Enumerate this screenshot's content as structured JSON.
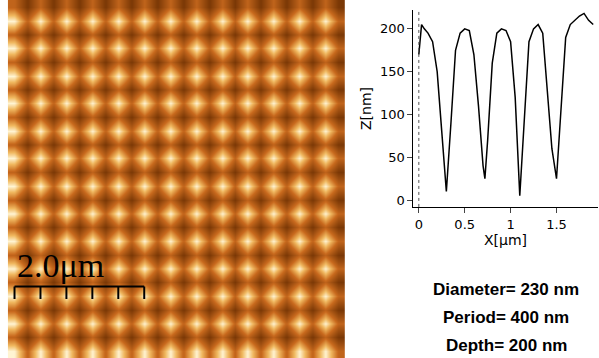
{
  "chart_data": [
    {
      "type": "heatmap",
      "xlim": [
        0,
        5.2
      ],
      "ylim": [
        0,
        5.2
      ],
      "tick_labels": false,
      "scale_bar": {
        "label": "2.0μm",
        "length": 2.0
      },
      "cells": [
        [
          200,
          110,
          200,
          110,
          200,
          110,
          200,
          110,
          200,
          110,
          200,
          110,
          200,
          110,
          200,
          110,
          200,
          110,
          200,
          110,
          200,
          110,
          200,
          110,
          200,
          110
        ],
        [
          110,
          50,
          110,
          50,
          110,
          50,
          110,
          50,
          110,
          50,
          110,
          50,
          110,
          50,
          110,
          50,
          110,
          50,
          110,
          50,
          110,
          50,
          110,
          50,
          110,
          50
        ],
        [
          200,
          110,
          200,
          110,
          200,
          110,
          200,
          110,
          200,
          110,
          200,
          110,
          200,
          110,
          200,
          110,
          200,
          110,
          200,
          110,
          200,
          110,
          200,
          110,
          200,
          110
        ],
        [
          110,
          50,
          110,
          50,
          110,
          50,
          110,
          50,
          110,
          50,
          110,
          50,
          110,
          50,
          110,
          50,
          110,
          50,
          110,
          50,
          110,
          50,
          110,
          50,
          110,
          50
        ],
        [
          200,
          110,
          200,
          110,
          200,
          110,
          200,
          110,
          200,
          110,
          200,
          110,
          200,
          110,
          200,
          110,
          200,
          110,
          200,
          110,
          200,
          110,
          200,
          110,
          200,
          110
        ],
        [
          110,
          50,
          110,
          50,
          110,
          50,
          110,
          50,
          110,
          50,
          110,
          50,
          110,
          50,
          110,
          50,
          110,
          50,
          110,
          50,
          110,
          50,
          110,
          50,
          110,
          50
        ],
        [
          200,
          110,
          200,
          110,
          200,
          110,
          200,
          110,
          200,
          110,
          200,
          110,
          200,
          110,
          200,
          110,
          200,
          110,
          200,
          110,
          200,
          110,
          200,
          110,
          200,
          110
        ],
        [
          110,
          50,
          110,
          50,
          110,
          50,
          110,
          50,
          110,
          50,
          110,
          50,
          110,
          50,
          110,
          50,
          110,
          50,
          110,
          50,
          110,
          50,
          110,
          50,
          110,
          50
        ],
        [
          200,
          110,
          200,
          110,
          200,
          110,
          200,
          110,
          200,
          110,
          200,
          110,
          200,
          110,
          200,
          110,
          200,
          110,
          200,
          110,
          200,
          110,
          200,
          110,
          200,
          110
        ],
        [
          110,
          50,
          110,
          50,
          110,
          50,
          110,
          50,
          110,
          50,
          110,
          50,
          110,
          50,
          110,
          50,
          110,
          50,
          110,
          50,
          110,
          50,
          110,
          50,
          110,
          50
        ],
        [
          200,
          110,
          200,
          110,
          200,
          110,
          200,
          110,
          200,
          110,
          200,
          110,
          200,
          110,
          200,
          110,
          200,
          110,
          200,
          110,
          200,
          110,
          200,
          110,
          200,
          110
        ],
        [
          110,
          50,
          110,
          50,
          110,
          50,
          110,
          50,
          110,
          50,
          110,
          50,
          110,
          50,
          110,
          50,
          110,
          50,
          110,
          50,
          110,
          50,
          110,
          50,
          110,
          50
        ],
        [
          200,
          110,
          200,
          110,
          200,
          110,
          200,
          110,
          200,
          110,
          200,
          110,
          200,
          110,
          200,
          110,
          200,
          110,
          200,
          110,
          200,
          110,
          200,
          110,
          200,
          110
        ],
        [
          110,
          50,
          110,
          50,
          110,
          50,
          110,
          50,
          110,
          50,
          110,
          50,
          110,
          50,
          110,
          50,
          110,
          50,
          110,
          50,
          110,
          50,
          110,
          50,
          110,
          50
        ],
        [
          200,
          110,
          200,
          110,
          200,
          110,
          200,
          110,
          200,
          110,
          200,
          110,
          200,
          110,
          200,
          110,
          200,
          110,
          200,
          110,
          200,
          110,
          200,
          110,
          200,
          110
        ],
        [
          110,
          50,
          110,
          50,
          110,
          50,
          110,
          50,
          110,
          50,
          110,
          50,
          110,
          50,
          110,
          50,
          110,
          50,
          110,
          50,
          110,
          50,
          110,
          50,
          110,
          50
        ],
        [
          200,
          110,
          200,
          110,
          200,
          110,
          200,
          110,
          200,
          110,
          200,
          110,
          200,
          110,
          200,
          110,
          200,
          110,
          200,
          110,
          200,
          110,
          200,
          110,
          200,
          110
        ],
        [
          110,
          50,
          110,
          50,
          110,
          50,
          110,
          50,
          110,
          50,
          110,
          50,
          110,
          50,
          110,
          50,
          110,
          50,
          110,
          50,
          110,
          50,
          110,
          50,
          110,
          50
        ],
        [
          200,
          110,
          200,
          110,
          200,
          110,
          200,
          110,
          200,
          110,
          200,
          110,
          200,
          110,
          200,
          110,
          200,
          110,
          200,
          110,
          200,
          110,
          200,
          110,
          200,
          110
        ],
        [
          110,
          50,
          110,
          50,
          110,
          50,
          110,
          50,
          110,
          50,
          110,
          50,
          110,
          50,
          110,
          50,
          110,
          50,
          110,
          50,
          110,
          50,
          110,
          50,
          110,
          50
        ],
        [
          200,
          110,
          200,
          110,
          200,
          110,
          200,
          110,
          200,
          110,
          200,
          110,
          200,
          110,
          200,
          110,
          200,
          110,
          200,
          110,
          200,
          110,
          200,
          110,
          200,
          110
        ],
        [
          110,
          50,
          110,
          50,
          110,
          50,
          110,
          50,
          110,
          50,
          110,
          50,
          110,
          50,
          110,
          50,
          110,
          50,
          110,
          50,
          110,
          50,
          110,
          50,
          110,
          50
        ],
        [
          200,
          110,
          200,
          110,
          200,
          110,
          200,
          110,
          200,
          110,
          200,
          110,
          200,
          110,
          200,
          110,
          200,
          110,
          200,
          110,
          200,
          110,
          200,
          110,
          200,
          110
        ],
        [
          110,
          50,
          110,
          50,
          110,
          50,
          110,
          50,
          110,
          50,
          110,
          50,
          110,
          50,
          110,
          50,
          110,
          50,
          110,
          50,
          110,
          50,
          110,
          50,
          110,
          50
        ],
        [
          200,
          110,
          200,
          110,
          200,
          110,
          200,
          110,
          200,
          110,
          200,
          110,
          200,
          110,
          200,
          110,
          200,
          110,
          200,
          110,
          200,
          110,
          200,
          110,
          200,
          110
        ],
        [
          110,
          50,
          110,
          50,
          110,
          50,
          110,
          50,
          110,
          50,
          110,
          50,
          110,
          50,
          110,
          50,
          110,
          50,
          110,
          50,
          110,
          50,
          110,
          50,
          110,
          50
        ]
      ]
    },
    {
      "type": "line",
      "x_label": "X[μm]",
      "y_label": "Z[nm]",
      "x": [
        0,
        0.03,
        0.06,
        0.1,
        0.15,
        0.2,
        0.25,
        0.3,
        0.35,
        0.4,
        0.45,
        0.5,
        0.55,
        0.6,
        0.65,
        0.7,
        0.72,
        0.75,
        0.8,
        0.85,
        0.9,
        0.95,
        1.0,
        1.05,
        1.1,
        1.15,
        1.2,
        1.25,
        1.3,
        1.35,
        1.4,
        1.45,
        1.5,
        1.55,
        1.6,
        1.65,
        1.7,
        1.75,
        1.8,
        1.85,
        1.9
      ],
      "values": [
        170,
        205,
        200,
        195,
        185,
        150,
        80,
        10,
        90,
        175,
        195,
        200,
        198,
        170,
        110,
        40,
        25,
        70,
        160,
        195,
        200,
        198,
        185,
        120,
        5,
        100,
        185,
        200,
        205,
        195,
        130,
        60,
        25,
        110,
        190,
        205,
        210,
        215,
        218,
        210,
        205
      ],
      "color": "#000000",
      "xlim": [
        -0.06,
        1.95
      ],
      "ylim": [
        -8,
        222
      ],
      "xticks": [
        0,
        0.5,
        1,
        1.5
      ],
      "yticks": [
        0,
        50,
        100,
        150,
        200
      ],
      "grid": false,
      "annotations": [
        "Diameter= 230 nm",
        "Period= 400 nm",
        "Depth= 200 nm"
      ]
    }
  ]
}
